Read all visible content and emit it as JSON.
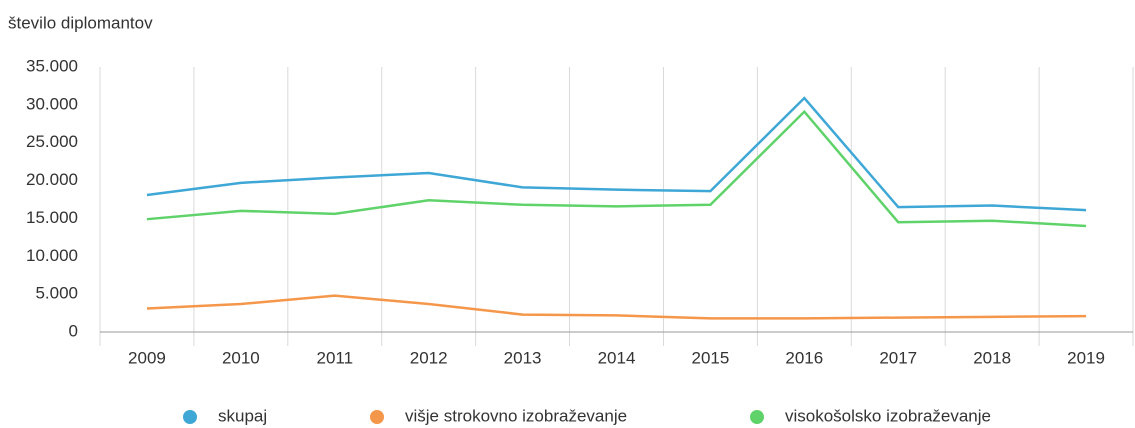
{
  "chart_data": {
    "type": "line",
    "y_label": "število diplomantov",
    "categories": [
      "2009",
      "2010",
      "2011",
      "2012",
      "2013",
      "2014",
      "2015",
      "2016",
      "2017",
      "2018",
      "2019"
    ],
    "series": [
      {
        "name": "skupaj",
        "color": "#3ea7d6",
        "values": [
          18100,
          19700,
          20400,
          21000,
          19100,
          18800,
          18600,
          30900,
          16500,
          16700,
          16100
        ]
      },
      {
        "name": "višje strokovno izobraževanje",
        "color": "#f5974a",
        "values": [
          3100,
          3700,
          4800,
          3700,
          2300,
          2200,
          1800,
          1800,
          1900,
          2000,
          2100
        ]
      },
      {
        "name": "visokošolsko izobraževanje",
        "color": "#5fd36a",
        "values": [
          14900,
          16000,
          15600,
          17400,
          16800,
          16600,
          16800,
          29100,
          14500,
          14700,
          14000
        ]
      }
    ],
    "ylim": [
      0,
      35000
    ],
    "yticks": [
      0,
      {
        "value": 5000,
        "label": "5.000"
      },
      {
        "value": 10000,
        "label": "10.000"
      },
      {
        "value": 15000,
        "label": "15.000"
      },
      {
        "value": 20000,
        "label": "20.000"
      },
      {
        "value": 25000,
        "label": "25.000"
      },
      {
        "value": 30000,
        "label": "30.000"
      },
      {
        "value": 35000,
        "label": "35.000"
      }
    ],
    "grid": false,
    "legend": "bottom"
  }
}
